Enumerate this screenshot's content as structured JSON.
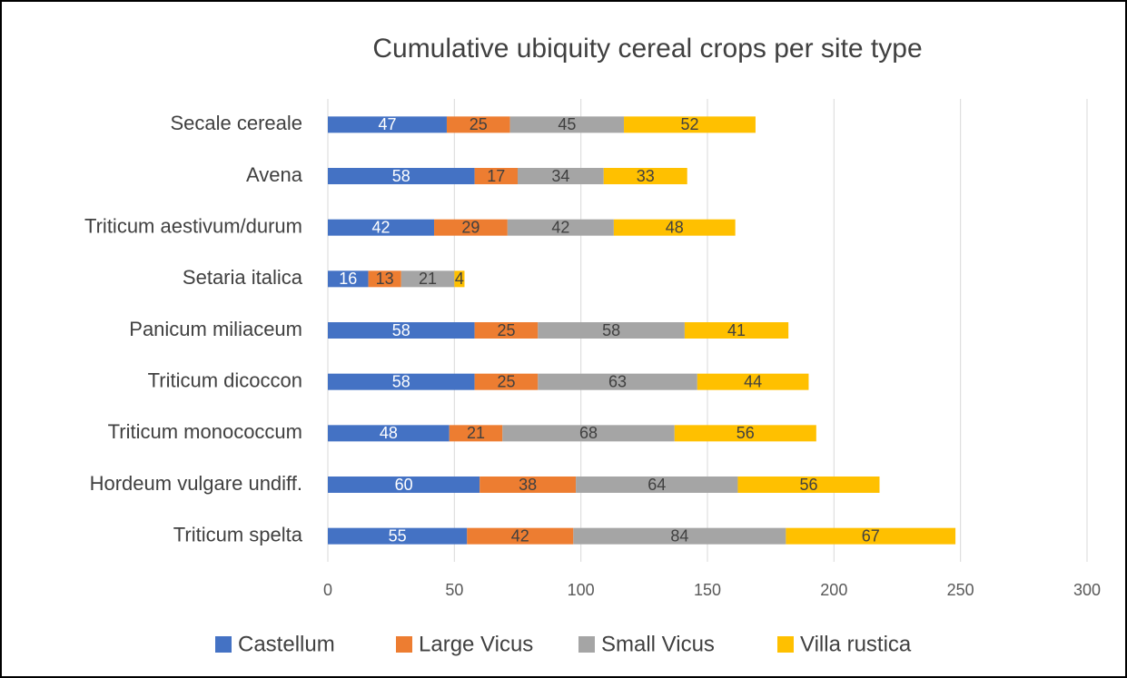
{
  "chart_data": {
    "type": "bar",
    "orientation": "horizontal",
    "stacked": true,
    "title": "Cumulative ubiquity cereal crops per site type",
    "categories": [
      "Secale cereale",
      "Avena",
      "Triticum aestivum/durum",
      "Setaria italica",
      "Panicum miliaceum",
      "Triticum dicoccon",
      "Triticum monococcum",
      "Hordeum vulgare undiff.",
      "Triticum spelta"
    ],
    "series": [
      {
        "name": "Castellum",
        "color": "#4472c4",
        "label_color": "#ffffff",
        "values": [
          47,
          58,
          42,
          16,
          58,
          58,
          48,
          60,
          55
        ]
      },
      {
        "name": "Large Vicus",
        "color": "#ed7d31",
        "label_color": "#404040",
        "values": [
          25,
          17,
          29,
          13,
          25,
          25,
          21,
          38,
          42
        ]
      },
      {
        "name": "Small Vicus",
        "color": "#a5a5a5",
        "label_color": "#404040",
        "values": [
          45,
          34,
          42,
          21,
          58,
          63,
          68,
          64,
          84
        ]
      },
      {
        "name": "Villa rustica",
        "color": "#ffc000",
        "label_color": "#404040",
        "values": [
          52,
          33,
          48,
          4,
          41,
          44,
          56,
          56,
          67
        ]
      }
    ],
    "xlim": [
      0,
      300
    ],
    "xticks": [
      0,
      50,
      100,
      150,
      200,
      250,
      300
    ],
    "grid": true,
    "legend": "bottom"
  }
}
